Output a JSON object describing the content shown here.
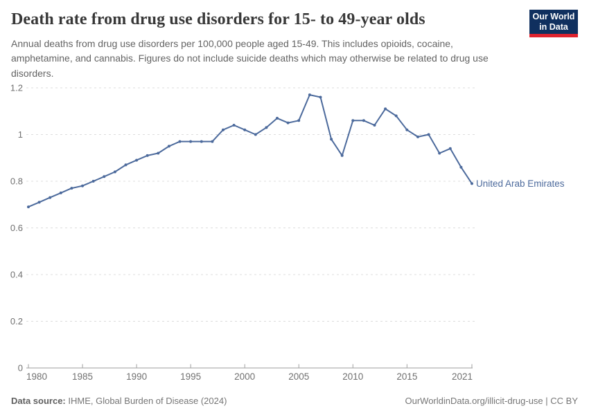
{
  "header": {
    "title": "Death rate from drug use disorders for 15- to 49-year olds",
    "subtitle": "Annual deaths from drug use disorders per 100,000 people aged 15-49. This includes opioids, cocaine, amphetamine, and cannabis. Figures do not include suicide deaths which may otherwise be related to drug use disorders.",
    "logo": {
      "line1": "Our World",
      "line2": "in Data"
    }
  },
  "chart_data": {
    "type": "line",
    "title": "Death rate from drug use disorders for 15- to 49-year olds",
    "xlabel": "",
    "ylabel": "Annual deaths per 100,000 people aged 15-49",
    "xlim": [
      1980,
      2021
    ],
    "ylim": [
      0,
      1.2
    ],
    "grid": true,
    "legend_position": "end-of-line",
    "x_ticks": [
      1980,
      1985,
      1990,
      1995,
      2000,
      2005,
      2010,
      2015,
      2021
    ],
    "y_ticks": [
      0,
      0.2,
      0.4,
      0.6,
      0.8,
      1,
      1.2
    ],
    "x": [
      1980,
      1981,
      1982,
      1983,
      1984,
      1985,
      1986,
      1987,
      1988,
      1989,
      1990,
      1991,
      1992,
      1993,
      1994,
      1995,
      1996,
      1997,
      1998,
      1999,
      2000,
      2001,
      2002,
      2003,
      2004,
      2005,
      2006,
      2007,
      2008,
      2009,
      2010,
      2011,
      2012,
      2013,
      2014,
      2015,
      2016,
      2017,
      2018,
      2019,
      2020,
      2021
    ],
    "series": [
      {
        "name": "United Arab Emirates",
        "color": "#4C6A9C",
        "values": [
          0.69,
          0.71,
          0.73,
          0.75,
          0.77,
          0.78,
          0.8,
          0.82,
          0.84,
          0.87,
          0.89,
          0.91,
          0.92,
          0.95,
          0.97,
          0.97,
          0.97,
          0.97,
          1.02,
          1.04,
          1.02,
          1.0,
          1.03,
          1.07,
          1.05,
          1.06,
          1.17,
          1.16,
          0.98,
          0.91,
          1.06,
          1.06,
          1.04,
          1.11,
          1.08,
          1.02,
          0.99,
          1.0,
          0.92,
          0.94,
          0.86,
          0.79
        ]
      }
    ]
  },
  "footer": {
    "source_label": "Data source:",
    "source_text": " IHME, Global Burden of Disease (2024)",
    "credit": "OurWorldinData.org/illicit-drug-use | CC BY"
  },
  "colors": {
    "line": "#4C6A9C",
    "grid": "#dcdcdc",
    "axis": "#9e9e9e",
    "tick_label": "#707070",
    "entity_label": "#4C6A9C"
  }
}
